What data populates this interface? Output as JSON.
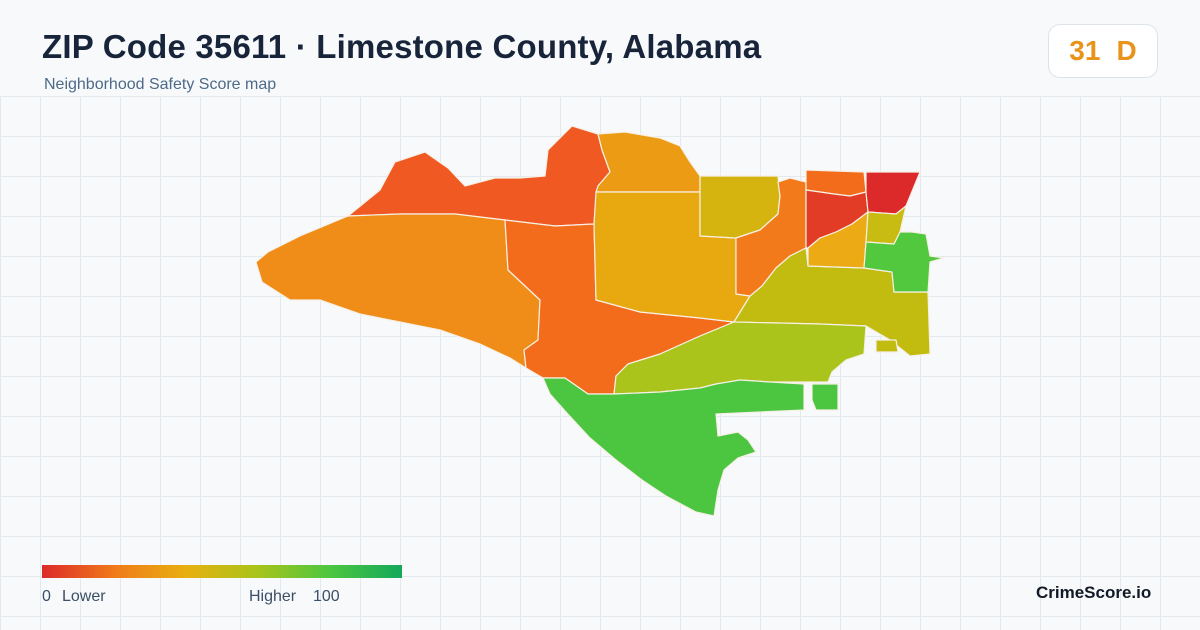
{
  "header": {
    "title": "ZIP Code 35611 · Limestone County, Alabama",
    "subtitle": "Neighborhood Safety Score map"
  },
  "score": {
    "value": "31",
    "grade": "D",
    "color": "#e8941a"
  },
  "legend": {
    "min": "0",
    "min_label": "Lower",
    "max_label": "Higher",
    "max": "100",
    "gradient": [
      "#dc2a2a",
      "#f07a1a",
      "#e8b010",
      "#a8c41a",
      "#4cc640",
      "#14a85a"
    ]
  },
  "brand": "CrimeScore.io",
  "map": {
    "regions": [
      {
        "name": "north-arc",
        "color": "#f05a22"
      },
      {
        "name": "west-lobe",
        "color": "#f08c18"
      },
      {
        "name": "central-west",
        "color": "#f26c1c"
      },
      {
        "name": "north-central",
        "color": "#ec9c14"
      },
      {
        "name": "central",
        "color": "#e8a810"
      },
      {
        "name": "north-east-central",
        "color": "#d6b410"
      },
      {
        "name": "east-central",
        "color": "#f27a1a"
      },
      {
        "name": "east-band",
        "color": "#c2bc10"
      },
      {
        "name": "southeast-band",
        "color": "#aac41c"
      },
      {
        "name": "south",
        "color": "#4cc640"
      },
      {
        "name": "south-east-small",
        "color": "#4cc640"
      },
      {
        "name": "town-center",
        "color": "#e23c26"
      },
      {
        "name": "town-ne",
        "color": "#dc2a2a"
      },
      {
        "name": "town-south",
        "color": "#ecaa14"
      },
      {
        "name": "town-east",
        "color": "#bcc218"
      },
      {
        "name": "east-green",
        "color": "#52c83e"
      },
      {
        "name": "town-north",
        "color": "#f26c1c"
      },
      {
        "name": "east-yellow",
        "color": "#c8bc12"
      }
    ]
  }
}
